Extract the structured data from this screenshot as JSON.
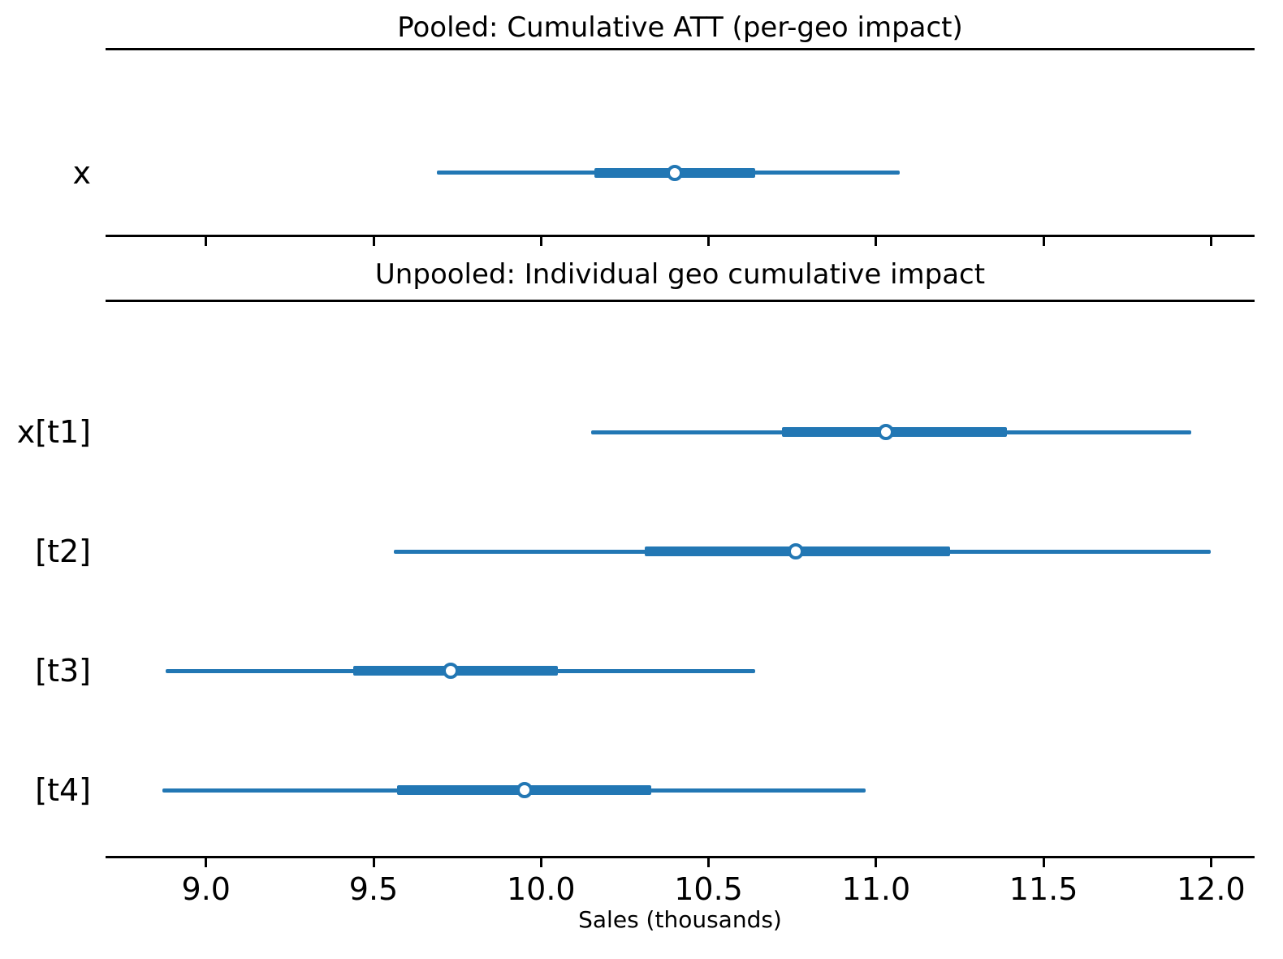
{
  "chart_data": [
    {
      "type": "forest",
      "panel": "pooled",
      "title": "Pooled: Cumulative ATT (per-geo impact)",
      "xlim": [
        8.7,
        12.13
      ],
      "xticks": [
        9.0,
        9.5,
        10.0,
        10.5,
        11.0,
        11.5,
        12.0
      ],
      "xtick_labels": [],
      "show_tick_labels": false,
      "legend": "none",
      "rows": [
        {
          "label": "x",
          "point_estimate": 10.4,
          "interval_inner": [
            10.16,
            10.64
          ],
          "interval_outer": [
            9.69,
            11.07
          ]
        }
      ]
    },
    {
      "type": "forest",
      "panel": "unpooled",
      "title": "Unpooled: Individual geo cumulative impact",
      "xlabel": "Sales (thousands)",
      "xlim": [
        8.7,
        12.13
      ],
      "xticks": [
        9.0,
        9.5,
        10.0,
        10.5,
        11.0,
        11.5,
        12.0
      ],
      "xtick_labels": [
        "9.0",
        "9.5",
        "10.0",
        "10.5",
        "11.0",
        "11.5",
        "12.0"
      ],
      "show_tick_labels": true,
      "legend": "none",
      "rows": [
        {
          "label": "x[t1]",
          "point_estimate": 11.03,
          "interval_inner": [
            10.72,
            11.39
          ],
          "interval_outer": [
            10.15,
            11.94
          ]
        },
        {
          "label": "[t2]",
          "point_estimate": 10.76,
          "interval_inner": [
            10.31,
            11.22
          ],
          "interval_outer": [
            9.56,
            12.0
          ]
        },
        {
          "label": "[t3]",
          "point_estimate": 9.73,
          "interval_inner": [
            9.44,
            10.05
          ],
          "interval_outer": [
            8.88,
            10.64
          ]
        },
        {
          "label": "[t4]",
          "point_estimate": 9.95,
          "interval_inner": [
            9.57,
            10.33
          ],
          "interval_outer": [
            8.87,
            10.97
          ]
        }
      ]
    }
  ],
  "style": {
    "line_color": "#2277b4",
    "marker_face_color": "#ffffff",
    "axis_color": "#000000",
    "background_color": "#ffffff"
  }
}
